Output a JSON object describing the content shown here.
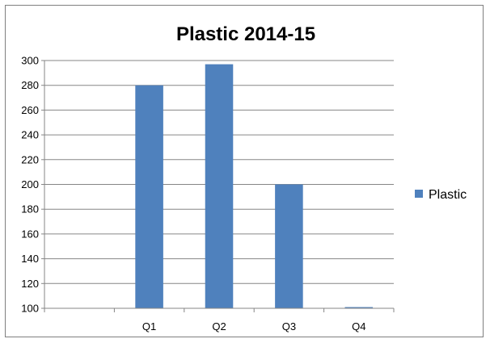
{
  "chart_data": {
    "type": "bar",
    "title": "Plastic 2014-15",
    "xlabel": "",
    "ylabel": "",
    "categories": [
      "",
      "Q1",
      "Q2",
      "Q3",
      "Q4"
    ],
    "series": [
      {
        "name": "Plastic",
        "color": "#4f81bd",
        "values": [
          null,
          280,
          297,
          200,
          99
        ]
      }
    ],
    "ylim": [
      100,
      300
    ],
    "yticks": [
      100,
      120,
      140,
      160,
      180,
      200,
      220,
      240,
      260,
      280,
      300
    ],
    "ytick_labels": [
      "100",
      "120",
      "140",
      "160",
      "180",
      "200",
      "220",
      "240",
      "260",
      "280",
      "300"
    ],
    "grid": true,
    "legend_position": "right",
    "gridline_color": "#868686",
    "axis_color": "#868686"
  }
}
